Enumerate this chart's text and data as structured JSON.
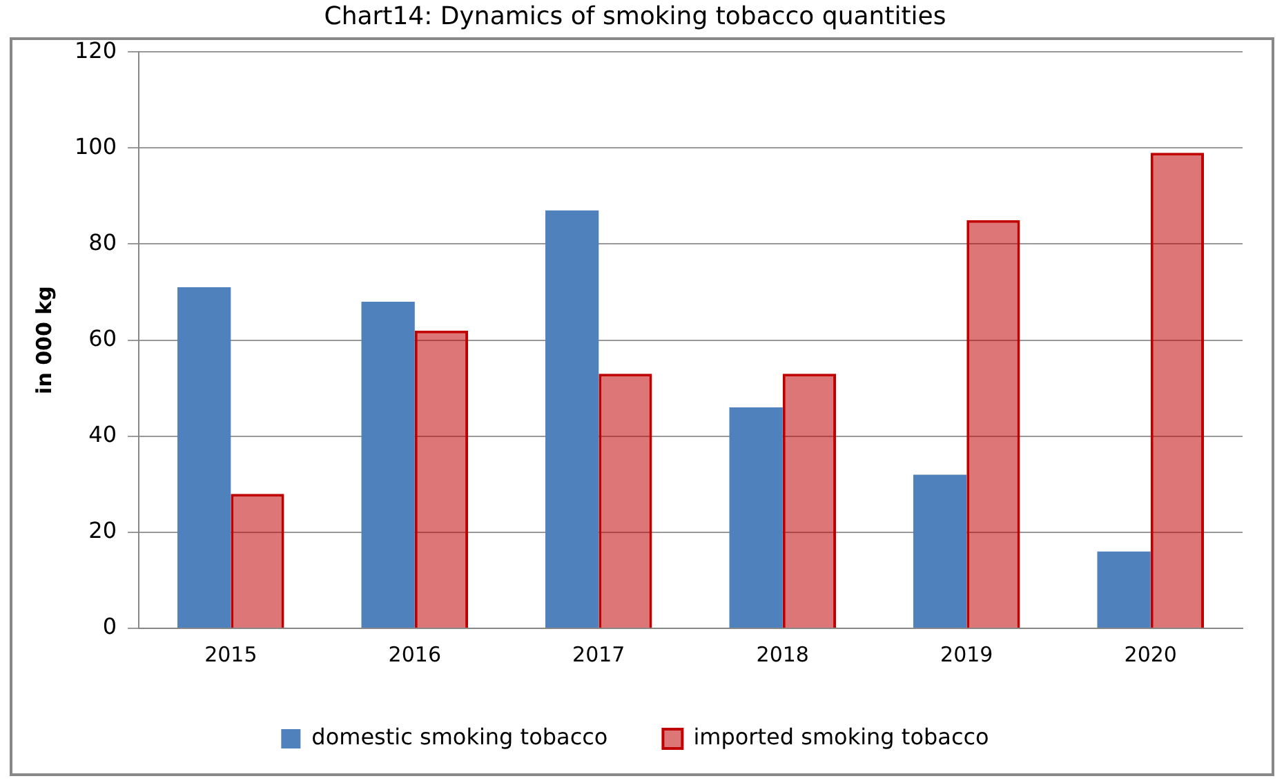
{
  "chart_data": {
    "type": "bar",
    "title": "Chart14: Dynamics of smoking tobacco quantities",
    "ylabel": "in 000 kg",
    "categories": [
      "2015",
      "2016",
      "2017",
      "2018",
      "2019",
      "2020"
    ],
    "series": [
      {
        "name": "domestic smoking tobacco",
        "color": "#4f81bd",
        "values": [
          71,
          68,
          87,
          46,
          32,
          16
        ]
      },
      {
        "name": "imported smoking tobacco",
        "color": "#c00000",
        "values": [
          28,
          62,
          53,
          53,
          85,
          99
        ]
      }
    ],
    "ylim": [
      0,
      120
    ],
    "yticks": [
      0,
      20,
      40,
      60,
      80,
      100,
      120
    ],
    "grid": "y",
    "legend": "bottom"
  }
}
